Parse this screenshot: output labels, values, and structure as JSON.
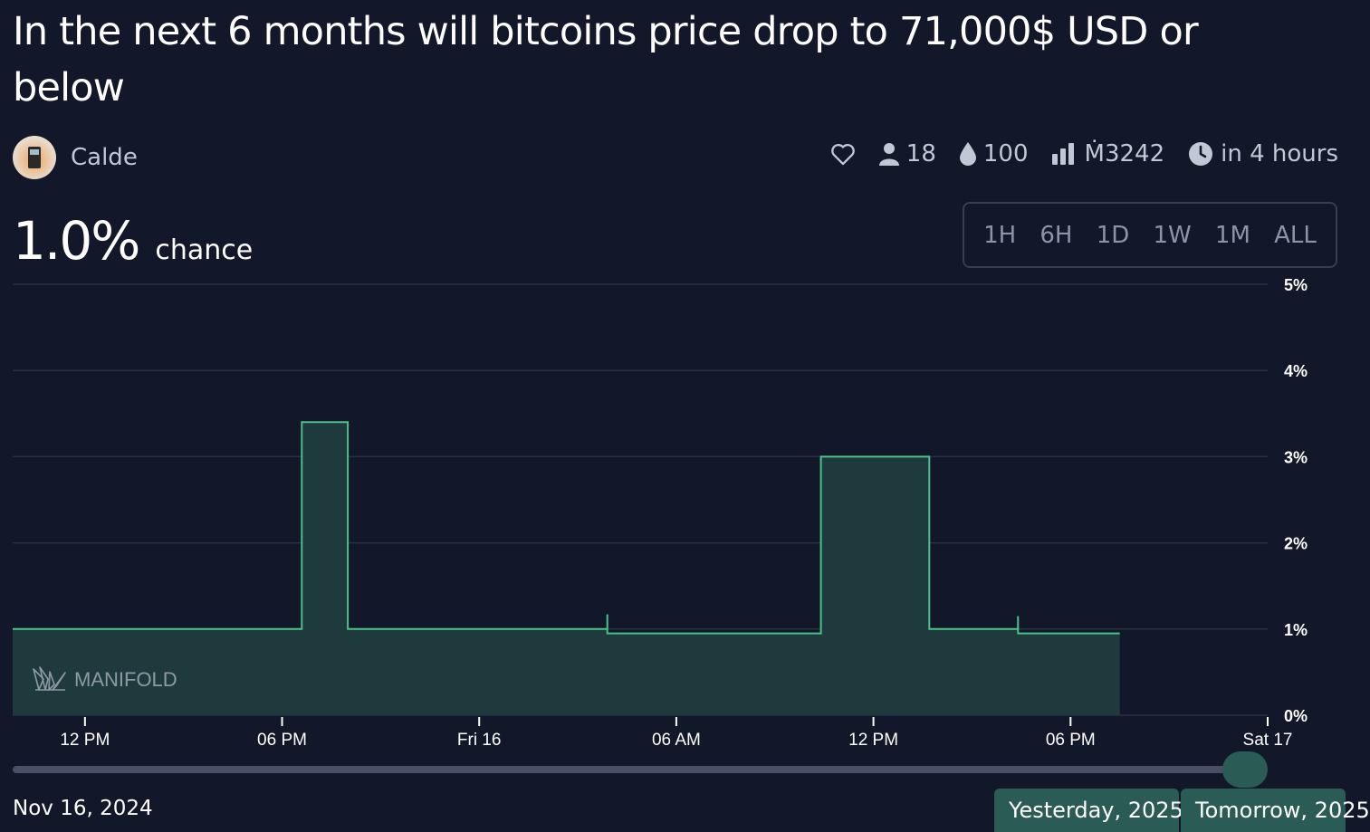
{
  "market": {
    "title": "In the next 6 months will bitcoins price drop to 71,000$ USD or below",
    "creator": "Calde",
    "probability": "1.0%",
    "probability_label": "chance"
  },
  "stats": {
    "traders": "18",
    "liquidity": "100",
    "volume": "Ṁ3242",
    "close": "in 4 hours"
  },
  "time_ranges": [
    "1H",
    "6H",
    "1D",
    "1W",
    "1M",
    "ALL"
  ],
  "watermark": "MANIFOLD",
  "scrubber": {
    "start_date": "Nov 16, 2024",
    "tag_left": "Yesterday, 2025",
    "tag_right": "Tomorrow, 2025"
  },
  "colors": {
    "background": "#121729",
    "line": "#4ac28a",
    "fill": "#1f3a3d"
  },
  "chart_data": {
    "type": "area",
    "x_unit": "hours since 12 PM",
    "x_ticks": [
      {
        "t": 0,
        "label": "12 PM"
      },
      {
        "t": 6,
        "label": "06 PM"
      },
      {
        "t": 12,
        "label": "Fri 16"
      },
      {
        "t": 18,
        "label": "06 AM"
      },
      {
        "t": 24,
        "label": "12 PM"
      },
      {
        "t": 30,
        "label": "06 PM"
      },
      {
        "t": 36,
        "label": "Sat 17"
      }
    ],
    "xlim": [
      -2.2,
      36
    ],
    "ylim": [
      0,
      5
    ],
    "y_ticks": [
      "0%",
      "1%",
      "2%",
      "3%",
      "4%",
      "5%"
    ],
    "series": [
      {
        "points": [
          [
            -2.2,
            1.0
          ],
          [
            6.6,
            1.0
          ],
          [
            6.6,
            3.4
          ],
          [
            8.0,
            3.4
          ],
          [
            8.0,
            1.0
          ],
          [
            15.9,
            1.0
          ],
          [
            15.9,
            0.95
          ],
          [
            22.4,
            0.95
          ],
          [
            22.4,
            3.0
          ],
          [
            25.7,
            3.0
          ],
          [
            25.7,
            1.0
          ],
          [
            28.4,
            1.0
          ],
          [
            28.4,
            0.95
          ],
          [
            31.5,
            0.95
          ]
        ]
      }
    ],
    "spikes": [
      [
        15.9,
        1.17
      ],
      [
        28.4,
        1.15
      ]
    ]
  }
}
